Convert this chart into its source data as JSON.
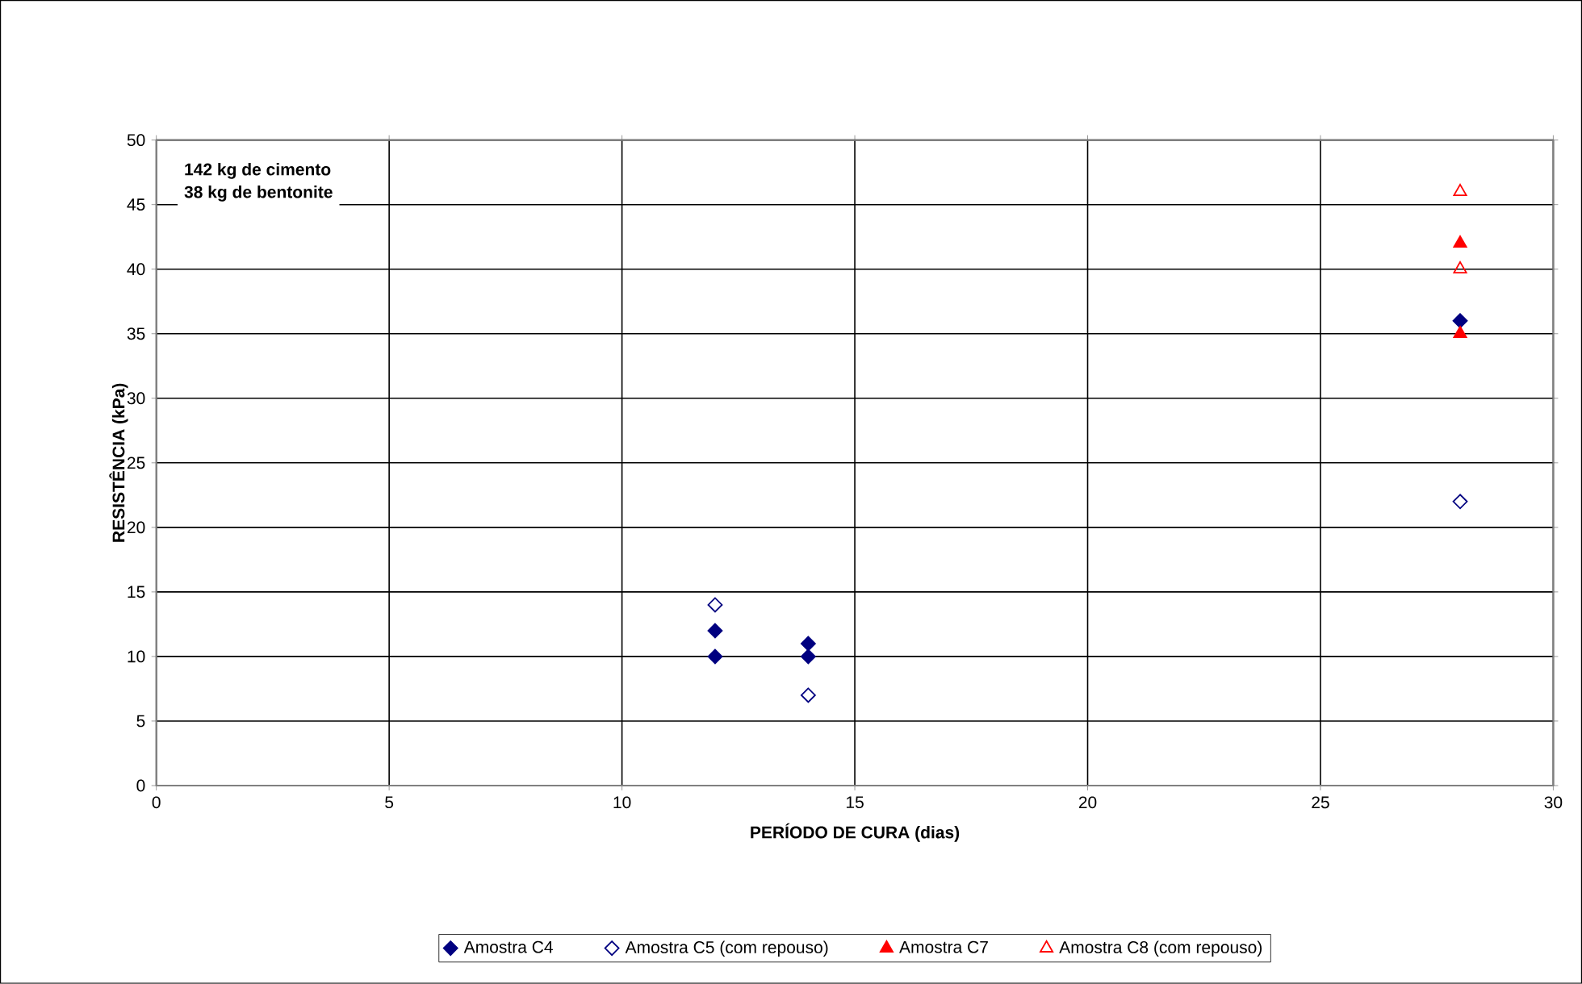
{
  "chart_data": {
    "type": "scatter",
    "xlabel": "PERÍODO DE CURA (dias)",
    "ylabel": "RESISTÊNCIA (kPa)",
    "annotations": [
      "142 kg de cimento",
      "38 kg de bentonite"
    ],
    "xlim": [
      0,
      30
    ],
    "ylim": [
      0,
      50
    ],
    "xticks": [
      0,
      5,
      10,
      15,
      20,
      25,
      30
    ],
    "yticks": [
      0,
      5,
      10,
      15,
      20,
      25,
      30,
      35,
      40,
      45,
      50
    ],
    "grid": true,
    "legend": "bottom",
    "series": [
      {
        "name": "Amostra C4",
        "color": "#000080",
        "marker": "diamond",
        "x": [
          12,
          12,
          14,
          14,
          28
        ],
        "values": [
          12,
          10,
          11,
          10,
          36
        ]
      },
      {
        "name": "Amostra C5 (com repouso)",
        "color": "#000080",
        "marker": "diamond",
        "x": [
          12,
          14,
          28
        ],
        "values": [
          14,
          7,
          22
        ]
      },
      {
        "name": "Amostra C7",
        "color": "#ff0000",
        "marker": "triangle",
        "x": [
          28,
          28
        ],
        "values": [
          42,
          35
        ]
      },
      {
        "name": "Amostra C8 (com repouso)",
        "color": "#ff0000",
        "marker": "triangle",
        "x": [
          28,
          28
        ],
        "values": [
          46,
          40
        ]
      }
    ]
  }
}
